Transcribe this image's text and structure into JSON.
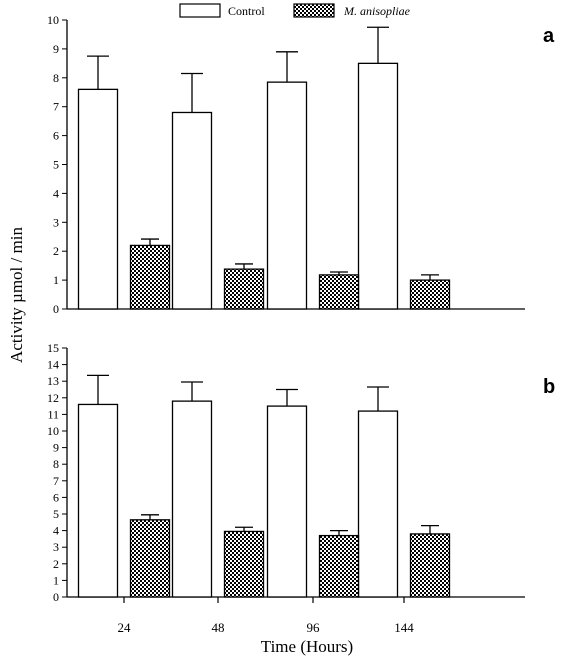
{
  "figure": {
    "ylabel": "Activity µmol / min",
    "xlabel": "Time (Hours)"
  },
  "legend": {
    "placement": "top-center",
    "items": [
      {
        "label": "Control",
        "pattern": "white",
        "italic": false
      },
      {
        "label": "M. anisopliae",
        "pattern": "checker",
        "italic": true
      }
    ]
  },
  "chart_data": [
    {
      "type": "bar",
      "panel_label": "a",
      "categories": [
        "24",
        "48",
        "96",
        "144"
      ],
      "ylim": [
        0,
        10
      ],
      "yticks": [
        "0",
        "1",
        "2",
        "3",
        "4",
        "5",
        "6",
        "7",
        "8",
        "9",
        "10"
      ],
      "series": [
        {
          "name": "Control",
          "values": [
            7.6,
            6.8,
            7.85,
            8.5
          ],
          "errors": [
            1.15,
            1.35,
            1.05,
            1.25
          ]
        },
        {
          "name": "M. anisopliae",
          "values": [
            2.2,
            1.38,
            1.18,
            1.0
          ],
          "errors": [
            0.22,
            0.18,
            0.1,
            0.18
          ]
        }
      ],
      "grid": false
    },
    {
      "type": "bar",
      "panel_label": "b",
      "categories": [
        "24",
        "48",
        "96",
        "144"
      ],
      "ylim": [
        0,
        15
      ],
      "yticks": [
        "0",
        "1",
        "2",
        "3",
        "4",
        "5",
        "6",
        "7",
        "8",
        "9",
        "10",
        "11",
        "12",
        "13",
        "14",
        "15"
      ],
      "series": [
        {
          "name": "Control",
          "values": [
            11.6,
            11.8,
            11.5,
            11.2
          ],
          "errors": [
            1.75,
            1.15,
            1.0,
            1.45
          ]
        },
        {
          "name": "M. anisopliae",
          "values": [
            4.65,
            3.95,
            3.7,
            3.8
          ],
          "errors": [
            0.3,
            0.25,
            0.3,
            0.5
          ]
        }
      ],
      "grid": false
    }
  ],
  "colors": {
    "bar_fill": "#ffffff",
    "stroke": "#000000",
    "checker_dark": "#000000",
    "checker_light": "#ffffff"
  }
}
